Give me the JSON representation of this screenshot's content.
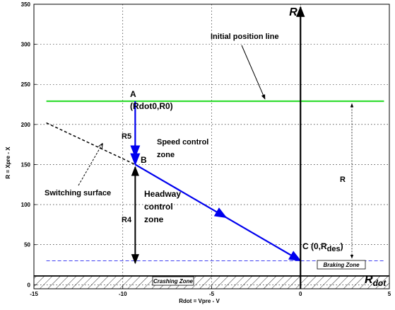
{
  "chart_data": {
    "type": "line",
    "xlabel": "Rdot = Vpre - V",
    "ylabel": "R = Xpre - X",
    "xlim": [
      -15,
      5
    ],
    "ylim": [
      -5,
      350
    ],
    "xticks": [
      -15,
      -10,
      -5,
      0,
      5
    ],
    "yticks": [
      0,
      50,
      100,
      150,
      200,
      250,
      300,
      350
    ],
    "grid": true,
    "series": [
      {
        "name": "Initial position line",
        "color": "#33dd33",
        "x": [
          -14.3,
          4.7
        ],
        "y": [
          229,
          229
        ]
      },
      {
        "name": "Switching surface",
        "color": "#000000",
        "dash": true,
        "x": [
          -14.3,
          -9.3
        ],
        "y": [
          202,
          150
        ]
      },
      {
        "color": "#0000ee",
        "x": [
          -9.3,
          -9.3
        ],
        "y": [
          229,
          150
        ]
      },
      {
        "color": "#0000ee",
        "x": [
          -9.3,
          0
        ],
        "y": [
          150,
          30
        ]
      },
      {
        "color": "#0000ee",
        "dash": true,
        "x": [
          -14.3,
          4.7
        ],
        "y": [
          30,
          30
        ]
      },
      {
        "color": "#000000",
        "x": [
          -15,
          5
        ],
        "y": [
          11,
          11
        ]
      }
    ],
    "vertical_R_axis": {
      "x": 0,
      "y_range": [
        -5,
        350
      ]
    },
    "annotations": {
      "initial_position_line": "Initial position line",
      "point_a": "A",
      "point_a_coords": "(Rdot0,R0)",
      "r5": "R5",
      "point_b": "B",
      "speed_zone_1": "Speed control",
      "speed_zone_2": "zone",
      "switching_surface": "Switching surface",
      "headway_1": "Headway",
      "headway_2": "control",
      "headway_3": "zone",
      "r4": "R4",
      "r_dim": "R",
      "point_c": "C (0,R",
      "point_c_sub": "des",
      "point_c_close": ")",
      "braking_zone": "Braking Zone",
      "crashing_zone": "Crashing Zone",
      "r_axis": "R",
      "rdot_axis_main": "R",
      "rdot_axis_sub": "dot"
    }
  }
}
